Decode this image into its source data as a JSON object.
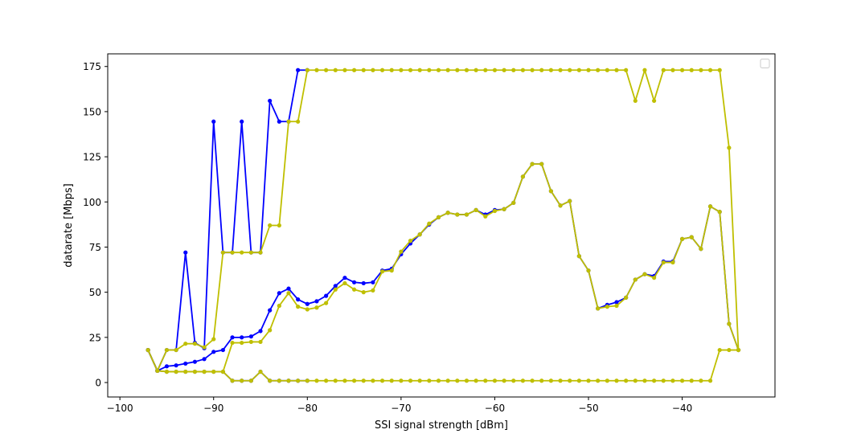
{
  "chart_data": {
    "type": "line",
    "title": "",
    "xlabel": "SSI signal strength [dBm]",
    "ylabel": "datarate [Mbps]",
    "xlim": [
      -101.3,
      -30.1
    ],
    "ylim": [
      -8,
      182
    ],
    "xticks": [
      -100,
      -90,
      -80,
      -70,
      -60,
      -50,
      -40
    ],
    "xtick_labels": [
      "−100",
      "−90",
      "−80",
      "−70",
      "−60",
      "−50",
      "−40"
    ],
    "yticks": [
      0,
      25,
      50,
      75,
      100,
      125,
      150,
      175
    ],
    "ytick_labels": [
      "0",
      "25",
      "50",
      "75",
      "100",
      "125",
      "150",
      "175"
    ],
    "grid": false,
    "legend": {
      "placement": "top-right",
      "entries": []
    },
    "colors": {
      "blue": "#0000ff",
      "yellow": "#bfbf00"
    },
    "series": [
      {
        "color": "#0000ff",
        "x": [
          -97,
          -96,
          -95,
          -94,
          -93,
          -92,
          -91,
          -90,
          -89,
          -88,
          -87,
          -86,
          -85,
          -84,
          -83,
          -82,
          -81,
          -80
        ],
        "y": [
          18,
          6.5,
          6,
          6,
          6,
          6,
          6,
          6,
          6,
          1,
          1,
          1,
          6,
          1,
          1,
          1,
          1,
          1
        ]
      },
      {
        "color": "#bfbf00",
        "x": [
          -97,
          -96,
          -95,
          -94,
          -93,
          -92,
          -91,
          -90,
          -89,
          -88,
          -87,
          -86,
          -85,
          -84,
          -83,
          -82,
          -81,
          -80,
          -79,
          -78,
          -77,
          -76,
          -75,
          -74,
          -73,
          -72,
          -71,
          -70,
          -69,
          -68,
          -67,
          -66,
          -65,
          -64,
          -63,
          -62,
          -61,
          -60,
          -59,
          -58,
          -57,
          -56,
          -55,
          -54,
          -53,
          -52,
          -51,
          -50,
          -49,
          -48,
          -47,
          -46,
          -45,
          -44,
          -43,
          -42,
          -41,
          -40,
          -39,
          -38,
          -37,
          -36,
          -35,
          -34
        ],
        "y": [
          18,
          6.5,
          6,
          6,
          6,
          6,
          6,
          6,
          6,
          1,
          1,
          1,
          6,
          1,
          1,
          1,
          1,
          1,
          1,
          1,
          1,
          1,
          1,
          1,
          1,
          1,
          1,
          1,
          1,
          1,
          1,
          1,
          1,
          1,
          1,
          1,
          1,
          1,
          1,
          1,
          1,
          1,
          1,
          1,
          1,
          1,
          1,
          1,
          1,
          1,
          1,
          1,
          1,
          1,
          1,
          1,
          1,
          1,
          1,
          1,
          1,
          18,
          18,
          18
        ]
      },
      {
        "color": "#0000ff",
        "x": [
          -97,
          -96,
          -95,
          -94,
          -93,
          -92,
          -91,
          -90,
          -89,
          -88,
          -87,
          -86,
          -85,
          -84,
          -83,
          -82,
          -81,
          -80,
          -79,
          -78,
          -77,
          -76,
          -75,
          -74,
          -73,
          -72,
          -71,
          -70,
          -69,
          -68,
          -67,
          -66,
          -65,
          -64,
          -63,
          -62,
          -61,
          -60,
          -59,
          -58,
          -57,
          -56,
          -55,
          -54,
          -53,
          -52,
          -51,
          -50,
          -49,
          -48,
          -47,
          -46,
          -45,
          -44,
          -43,
          -42,
          -41,
          -40,
          -39,
          -38,
          -37,
          -36,
          -35,
          -34
        ],
        "y": [
          18,
          6.5,
          9,
          9.5,
          10.5,
          11.5,
          13,
          17,
          18,
          25,
          25,
          25.5,
          28.5,
          40,
          49.5,
          52,
          46,
          43.5,
          45,
          48,
          53.5,
          58,
          55.5,
          55,
          55.5,
          62,
          63,
          71,
          77,
          82,
          87.5,
          91.5,
          94,
          93,
          93,
          95.5,
          93,
          95.5,
          96,
          99.5,
          114,
          121,
          121,
          106,
          98,
          100.5,
          70,
          62,
          41,
          43,
          44.5,
          47,
          57,
          60,
          59,
          67,
          67,
          79.5,
          80.5,
          74,
          97.5,
          94.5,
          32.5,
          18
        ]
      },
      {
        "color": "#bfbf00",
        "x": [
          -97,
          -96,
          -95,
          -94,
          -93,
          -92,
          -91,
          -90,
          -89,
          -88,
          -87,
          -86,
          -85,
          -84,
          -83,
          -82,
          -81,
          -80,
          -79,
          -78,
          -77,
          -76,
          -75,
          -74,
          -73,
          -72,
          -71,
          -70,
          -69,
          -68,
          -67,
          -66,
          -65,
          -64,
          -63,
          -62,
          -61,
          -60,
          -59,
          -58,
          -57,
          -56,
          -55,
          -54,
          -53,
          -52,
          -51,
          -50,
          -49,
          -48,
          -47,
          -46,
          -45,
          -44,
          -43,
          -42,
          -41,
          -40,
          -39,
          -38,
          -37,
          -36,
          -35,
          -34
        ],
        "y": [
          18,
          6.5,
          6,
          6,
          6,
          6,
          6,
          6,
          6,
          22,
          22,
          22.5,
          22.5,
          29,
          42.5,
          49.5,
          42,
          40.5,
          41.5,
          44,
          51.5,
          55,
          51.5,
          50,
          51,
          61.5,
          62,
          72.5,
          78.5,
          82,
          88,
          91.5,
          94,
          93,
          93,
          95.5,
          92,
          95,
          96,
          99.5,
          114,
          121,
          121,
          106,
          98,
          100.5,
          70,
          62,
          41,
          42,
          42.5,
          47,
          57,
          60,
          58,
          66.5,
          66.5,
          79.5,
          80.5,
          74,
          97.5,
          94.5,
          32.5,
          18
        ]
      },
      {
        "color": "#0000ff",
        "x": [
          -97,
          -96,
          -95,
          -94,
          -93,
          -92,
          -91,
          -90,
          -89,
          -88,
          -87,
          -86,
          -85,
          -84,
          -83,
          -82,
          -81,
          -80
        ],
        "y": [
          18,
          6.5,
          18,
          18,
          72,
          22,
          19,
          144.5,
          72,
          72,
          144.5,
          72,
          72,
          156,
          144.5,
          144.5,
          173,
          173
        ]
      },
      {
        "color": "#bfbf00",
        "x": [
          -97,
          -96,
          -95,
          -94,
          -93,
          -92,
          -91,
          -90,
          -89,
          -88,
          -87,
          -86,
          -85,
          -84,
          -83,
          -82,
          -81,
          -80,
          -79,
          -78,
          -77,
          -76,
          -75,
          -74,
          -73,
          -72,
          -71,
          -70,
          -69,
          -68,
          -67,
          -66,
          -65,
          -64,
          -63,
          -62,
          -61,
          -60,
          -59,
          -58,
          -57,
          -56,
          -55,
          -54,
          -53,
          -52,
          -51,
          -50,
          -49,
          -48,
          -47,
          -46,
          -45,
          -44,
          -43,
          -42,
          -41,
          -40,
          -39,
          -38,
          -37,
          -36,
          -35,
          -34
        ],
        "y": [
          18,
          6.5,
          18,
          18,
          21.5,
          21.5,
          19.5,
          24,
          72,
          72,
          72,
          72,
          72,
          87,
          87,
          144.5,
          144.5,
          173,
          173,
          173,
          173,
          173,
          173,
          173,
          173,
          173,
          173,
          173,
          173,
          173,
          173,
          173,
          173,
          173,
          173,
          173,
          173,
          173,
          173,
          173,
          173,
          173,
          173,
          173,
          173,
          173,
          173,
          173,
          173,
          173,
          173,
          173,
          156,
          173,
          156,
          173,
          173,
          173,
          173,
          173,
          173,
          173,
          130,
          18
        ]
      }
    ]
  }
}
